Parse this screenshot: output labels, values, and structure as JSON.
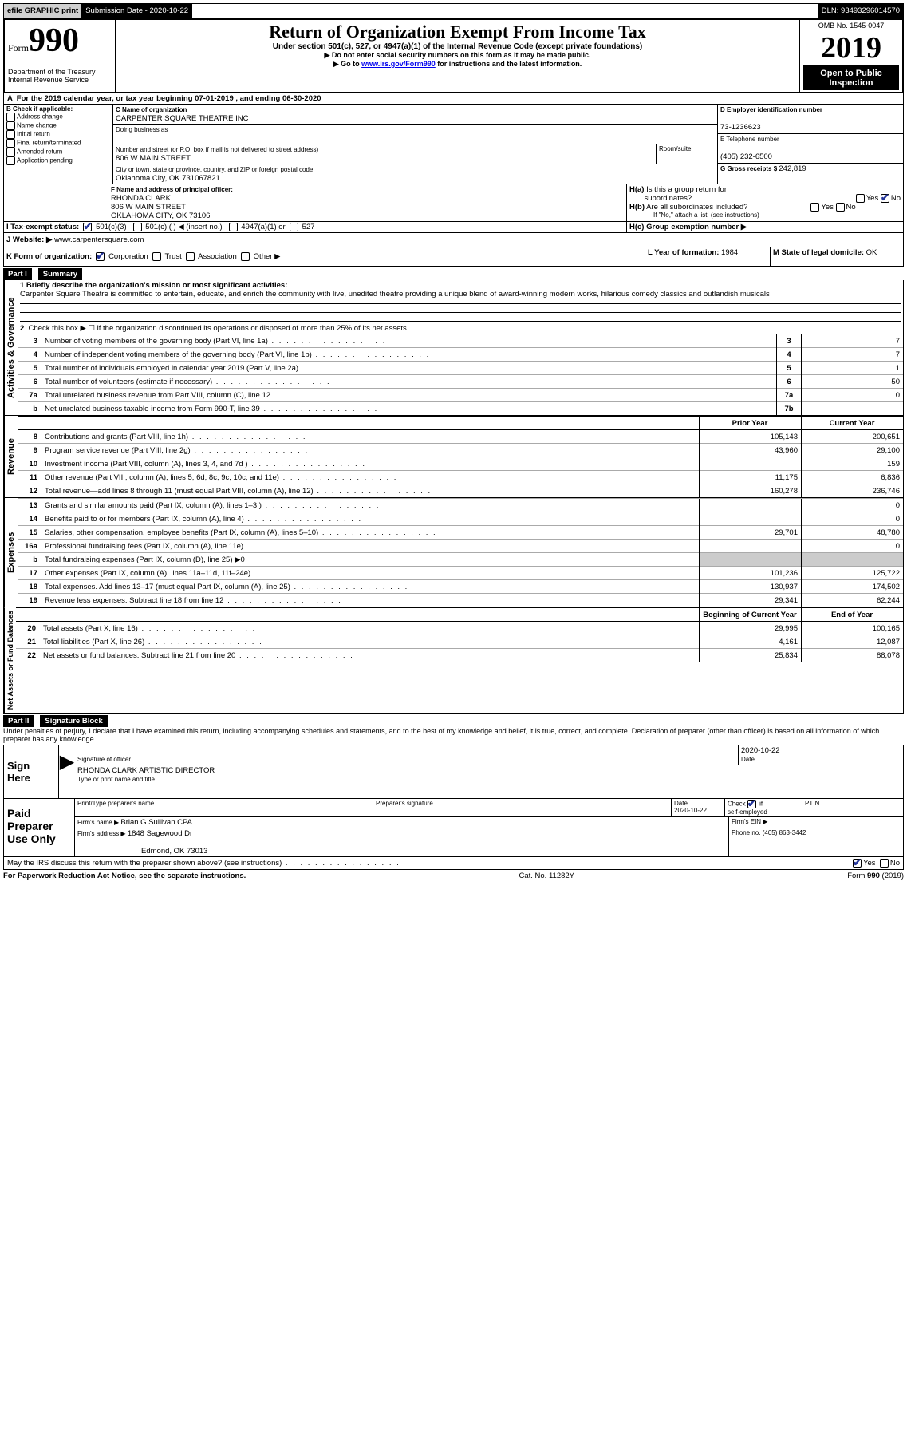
{
  "topbar": {
    "efile": "efile GRAPHIC print",
    "sub_label": "Submission Date - ",
    "sub_date": "2020-10-22",
    "dln_label": "DLN: ",
    "dln": "93493296014570"
  },
  "header": {
    "form_word": "Form",
    "form_num": "990",
    "dept": "Department of the Treasury\nInternal Revenue Service",
    "title": "Return of Organization Exempt From Income Tax",
    "sub1": "Under section 501(c), 527, or 4947(a)(1) of the Internal Revenue Code (except private foundations)",
    "sub2": "▶ Do not enter social security numbers on this form as it may be made public.",
    "sub3_pre": "▶ Go to ",
    "sub3_link": "www.irs.gov/Form990",
    "sub3_post": " for instructions and the latest information.",
    "omb": "OMB No. 1545-0047",
    "year": "2019",
    "open": "Open to Public Inspection"
  },
  "line_a": "For the 2019 calendar year, or tax year beginning 07-01-2019   , and ending 06-30-2020",
  "box_b": {
    "label": "B Check if applicable:",
    "items": [
      "Address change",
      "Name change",
      "Initial return",
      "Final return/terminated",
      "Amended return",
      "Application pending"
    ]
  },
  "box_c": {
    "label": "C Name of organization",
    "name": "CARPENTER SQUARE THEATRE INC",
    "dba": "Doing business as",
    "street_label": "Number and street (or P.O. box if mail is not delivered to street address)",
    "room_label": "Room/suite",
    "street": "806 W MAIN STREET",
    "city_label": "City or town, state or province, country, and ZIP or foreign postal code",
    "city": "Oklahoma City, OK  731067821"
  },
  "box_d": {
    "label": "D Employer identification number",
    "value": "73-1236623"
  },
  "box_e": {
    "label": "E Telephone number",
    "value": "(405) 232-6500"
  },
  "box_g": {
    "label": "G Gross receipts $ ",
    "value": "242,819"
  },
  "box_f": {
    "label": "F  Name and address of principal officer:",
    "name": "RHONDA CLARK",
    "street": "806 W MAIN STREET",
    "city": "OKLAHOMA CITY, OK  73106"
  },
  "box_h": {
    "ha_label": "H(a)  Is this a group return for subordinates?",
    "yes": "Yes",
    "no": "No",
    "hb_label": "H(b)  Are all subordinates included?",
    "hb_note": "If \"No,\" attach a list. (see instructions)",
    "hc_label": "H(c)  Group exemption number ▶"
  },
  "box_i": {
    "label": "I   Tax-exempt status:",
    "opts": [
      "501(c)(3)",
      "501(c) (  ) ◀ (insert no.)",
      "4947(a)(1) or",
      "527"
    ]
  },
  "box_j": {
    "label": "J   Website: ▶  ",
    "value": "www.carpentersquare.com"
  },
  "box_k": {
    "label": "K Form of organization:",
    "opts": [
      "Corporation",
      "Trust",
      "Association",
      "Other ▶"
    ]
  },
  "box_l": {
    "label": "L Year of formation: ",
    "value": "1984"
  },
  "box_m": {
    "label": "M State of legal domicile: ",
    "value": "OK"
  },
  "part1": {
    "num": "Part I",
    "title": "Summary",
    "l1_label": "1  Briefly describe the organization's mission or most significant activities:",
    "l1_text": "Carpenter Square Theatre is committed to entertain, educate, and enrich the community with live, unedited theatre providing a unique blend of award-winning modern works, hilarious comedy classics and outlandish musicals",
    "l2": "Check this box ▶ ☐  if the organization discontinued its operations or disposed of more than 25% of its net assets.",
    "lines_ag": [
      {
        "n": "3",
        "text": "Number of voting members of the governing body (Part VI, line 1a)",
        "box": "3",
        "val": "7"
      },
      {
        "n": "4",
        "text": "Number of independent voting members of the governing body (Part VI, line 1b)",
        "box": "4",
        "val": "7"
      },
      {
        "n": "5",
        "text": "Total number of individuals employed in calendar year 2019 (Part V, line 2a)",
        "box": "5",
        "val": "1"
      },
      {
        "n": "6",
        "text": "Total number of volunteers (estimate if necessary)",
        "box": "6",
        "val": "50"
      },
      {
        "n": "7a",
        "text": "Total unrelated business revenue from Part VIII, column (C), line 12",
        "box": "7a",
        "val": "0"
      },
      {
        "n": "b",
        "text": "Net unrelated business taxable income from Form 990-T, line 39",
        "box": "7b",
        "val": ""
      }
    ],
    "col_prior": "Prior Year",
    "col_current": "Current Year",
    "revenue": [
      {
        "n": "8",
        "text": "Contributions and grants (Part VIII, line 1h)",
        "prior": "105,143",
        "cur": "200,651"
      },
      {
        "n": "9",
        "text": "Program service revenue (Part VIII, line 2g)",
        "prior": "43,960",
        "cur": "29,100"
      },
      {
        "n": "10",
        "text": "Investment income (Part VIII, column (A), lines 3, 4, and 7d )",
        "prior": "",
        "cur": "159"
      },
      {
        "n": "11",
        "text": "Other revenue (Part VIII, column (A), lines 5, 6d, 8c, 9c, 10c, and 11e)",
        "prior": "11,175",
        "cur": "6,836"
      },
      {
        "n": "12",
        "text": "Total revenue—add lines 8 through 11 (must equal Part VIII, column (A), line 12)",
        "prior": "160,278",
        "cur": "236,746"
      }
    ],
    "expenses": [
      {
        "n": "13",
        "text": "Grants and similar amounts paid (Part IX, column (A), lines 1–3 )",
        "prior": "",
        "cur": "0"
      },
      {
        "n": "14",
        "text": "Benefits paid to or for members (Part IX, column (A), line 4)",
        "prior": "",
        "cur": "0"
      },
      {
        "n": "15",
        "text": "Salaries, other compensation, employee benefits (Part IX, column (A), lines 5–10)",
        "prior": "29,701",
        "cur": "48,780"
      },
      {
        "n": "16a",
        "text": "Professional fundraising fees (Part IX, column (A), line 11e)",
        "prior": "",
        "cur": "0"
      },
      {
        "n": "b",
        "text": "Total fundraising expenses (Part IX, column (D), line 25) ▶0",
        "shade": true
      },
      {
        "n": "17",
        "text": "Other expenses (Part IX, column (A), lines 11a–11d, 11f–24e)",
        "prior": "101,236",
        "cur": "125,722"
      },
      {
        "n": "18",
        "text": "Total expenses. Add lines 13–17 (must equal Part IX, column (A), line 25)",
        "prior": "130,937",
        "cur": "174,502"
      },
      {
        "n": "19",
        "text": "Revenue less expenses. Subtract line 18 from line 12",
        "prior": "29,341",
        "cur": "62,244"
      }
    ],
    "col_begin": "Beginning of Current Year",
    "col_end": "End of Year",
    "netassets": [
      {
        "n": "20",
        "text": "Total assets (Part X, line 16)",
        "prior": "29,995",
        "cur": "100,165"
      },
      {
        "n": "21",
        "text": "Total liabilities (Part X, line 26)",
        "prior": "4,161",
        "cur": "12,087"
      },
      {
        "n": "22",
        "text": "Net assets or fund balances. Subtract line 21 from line 20",
        "prior": "25,834",
        "cur": "88,078"
      }
    ],
    "vlabel_ag": "Activities & Governance",
    "vlabel_rev": "Revenue",
    "vlabel_exp": "Expenses",
    "vlabel_na": "Net Assets or Fund Balances"
  },
  "part2": {
    "num": "Part II",
    "title": "Signature Block",
    "decl": "Under penalties of perjury, I declare that I have examined this return, including accompanying schedules and statements, and to the best of my knowledge and belief, it is true, correct, and complete. Declaration of preparer (other than officer) is based on all information of which preparer has any knowledge.",
    "sign_here": "Sign Here",
    "sig_officer": "Signature of officer",
    "sig_date": "2020-10-22",
    "date_label": "Date",
    "officer_name": "RHONDA CLARK  ARTISTIC DIRECTOR",
    "type_name": "Type or print name and title",
    "paid": "Paid Preparer Use Only",
    "print_name": "Print/Type preparer's name",
    "prep_sig": "Preparer's signature",
    "prep_date": "2020-10-22",
    "check_label": "Check ☑ if self-employed",
    "ptin": "PTIN",
    "firm_name_label": "Firm's name    ▶ ",
    "firm_name": "Brian G Sullivan CPA",
    "firm_ein": "Firm's EIN ▶",
    "firm_addr_label": "Firm's address ▶ ",
    "firm_addr1": "1848 Sagewood Dr",
    "firm_addr2": "Edmond, OK  73013",
    "phone_label": "Phone no. ",
    "phone": "(405) 863-3442",
    "discuss": "May the IRS discuss this return with the preparer shown above? (see instructions)",
    "paperwork": "For Paperwork Reduction Act Notice, see the separate instructions.",
    "cat": "Cat. No. 11282Y",
    "formfoot": "Form 990 (2019)"
  }
}
